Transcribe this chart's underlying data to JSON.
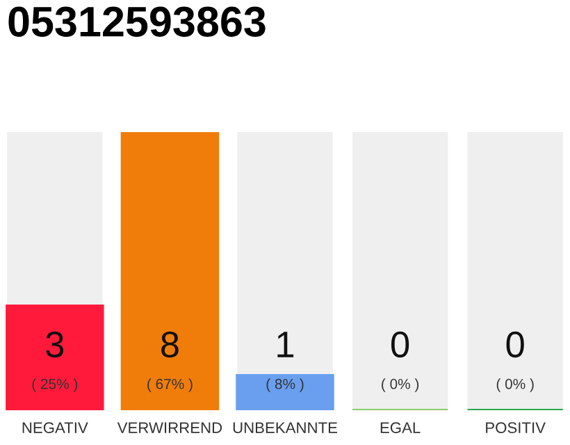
{
  "chart_data": {
    "type": "bar",
    "title": "05312593863",
    "categories": [
      "NEGATIV",
      "VERWIRREND",
      "UNBEKANNTE",
      "EGAL",
      "POSITIV"
    ],
    "values": [
      3,
      8,
      1,
      0,
      0
    ],
    "colors": [
      "#ff1a3c",
      "#f07d0a",
      "#6a9ff0",
      "#8ccc6a",
      "#2ca44c"
    ],
    "value_labels": [
      "3\n( 25% )",
      "8\n( 67% )",
      "1\n( 8% )",
      "0\n( 0% )",
      "0\n( 0% )"
    ],
    "grid": false,
    "legend": false
  }
}
